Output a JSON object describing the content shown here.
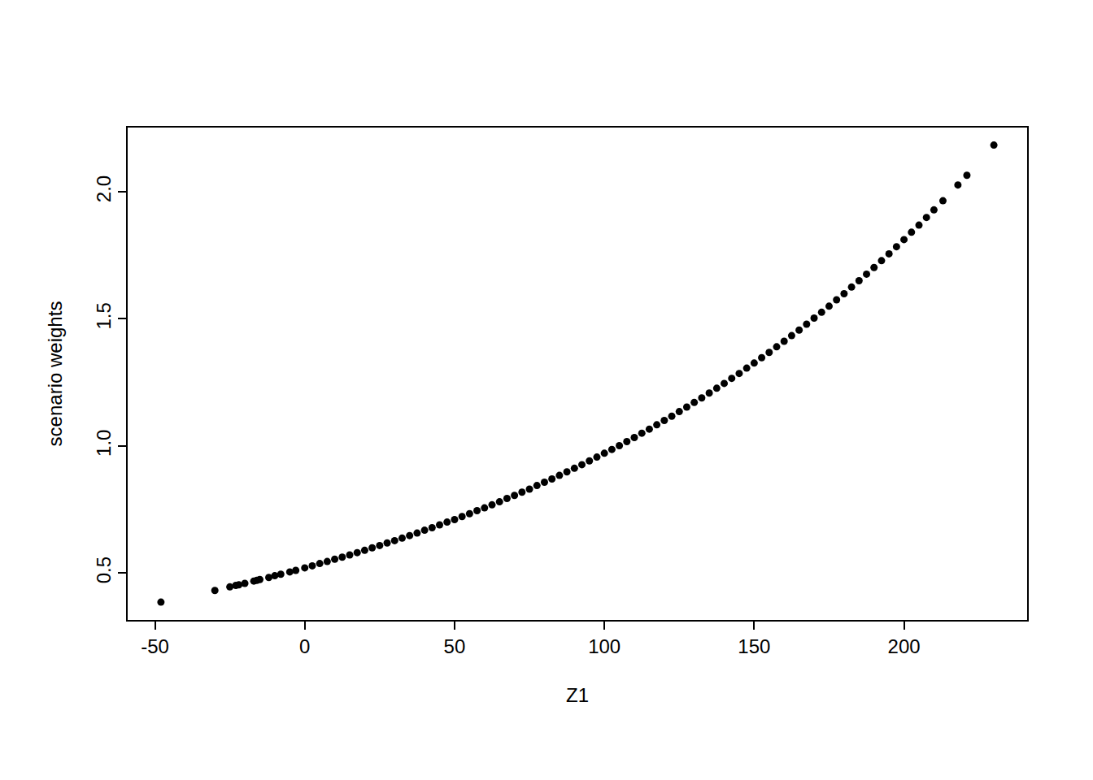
{
  "chart_data": {
    "type": "scatter",
    "x_label": "Z1",
    "y_label": "scenario weights",
    "color": "#000000",
    "marker": "circle",
    "grid": false,
    "xlim": [
      -59.1,
      241.1
    ],
    "ylim": [
      0.315,
      2.253
    ],
    "xticks": [
      -50,
      0,
      50,
      100,
      150,
      200
    ],
    "yticks": [
      0.5,
      {
        "value": 1,
        "label": "1.0"
      },
      1.5,
      {
        "value": 2,
        "label": "2.0"
      }
    ],
    "x": [
      -48,
      -30,
      -25,
      -23,
      -22,
      -20,
      -17,
      -16,
      -15,
      -12,
      -10,
      -8,
      -5,
      -3,
      0,
      2.5,
      5,
      7.5,
      10,
      12.5,
      15,
      17.5,
      20,
      22.5,
      25,
      27.5,
      30,
      32.5,
      35,
      37.5,
      40,
      42.5,
      45,
      47.5,
      50,
      52.5,
      55,
      57.5,
      60,
      62.5,
      65,
      67.5,
      70,
      72.5,
      75,
      77.5,
      80,
      82.5,
      85,
      87.5,
      90,
      92.5,
      95,
      97.5,
      100,
      102.5,
      105,
      107.5,
      110,
      112.5,
      115,
      117.5,
      120,
      122.5,
      125,
      127.5,
      130,
      132.5,
      135,
      137.5,
      140,
      142.5,
      145,
      147.5,
      150,
      152.5,
      155,
      157.5,
      160,
      162.5,
      165,
      167.5,
      170,
      172.5,
      175,
      177.5,
      180,
      182.5,
      185,
      187.5,
      190,
      192.5,
      195,
      197.5,
      200,
      202.5,
      205,
      207.5,
      210,
      213,
      218,
      221,
      230
    ],
    "values": [
      0.385,
      0.431,
      0.445,
      0.451,
      0.453,
      0.459,
      0.468,
      0.471,
      0.474,
      0.482,
      0.489,
      0.495,
      0.504,
      0.51,
      0.52,
      0.528,
      0.537,
      0.545,
      0.554,
      0.562,
      0.571,
      0.58,
      0.589,
      0.599,
      0.608,
      0.618,
      0.627,
      0.637,
      0.647,
      0.657,
      0.668,
      0.678,
      0.689,
      0.7,
      0.71,
      0.722,
      0.733,
      0.745,
      0.756,
      0.768,
      0.78,
      0.793,
      0.805,
      0.818,
      0.83,
      0.844,
      0.857,
      0.87,
      0.884,
      0.898,
      0.912,
      0.926,
      0.941,
      0.956,
      0.971,
      0.986,
      1.001,
      1.017,
      1.033,
      1.05,
      1.066,
      1.083,
      1.1,
      1.117,
      1.135,
      1.153,
      1.171,
      1.189,
      1.208,
      1.227,
      1.246,
      1.266,
      1.285,
      1.306,
      1.326,
      1.347,
      1.368,
      1.39,
      1.412,
      1.434,
      1.456,
      1.479,
      1.503,
      1.526,
      1.55,
      1.575,
      1.599,
      1.625,
      1.65,
      1.676,
      1.702,
      1.729,
      1.756,
      1.784,
      1.812,
      1.841,
      1.869,
      1.899,
      1.929,
      1.965,
      2.027,
      2.065,
      2.184
    ]
  }
}
